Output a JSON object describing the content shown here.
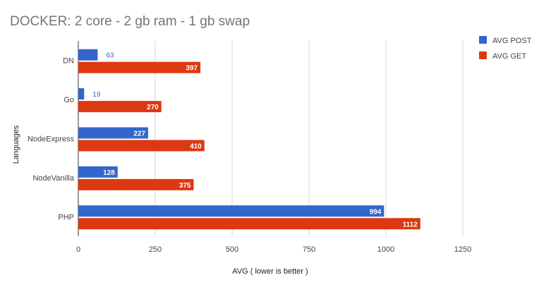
{
  "chart_data": {
    "type": "bar",
    "orientation": "horizontal",
    "title": "DOCKER: 2 core - 2 gb ram - 1 gb swap",
    "xlabel": "AVG ( lower is better )",
    "ylabel": "Languages",
    "categories": [
      "DN",
      "Go",
      "NodeExpress",
      "NodeVanilla",
      "PHP"
    ],
    "series": [
      {
        "name": "AVG POST",
        "color": "#3366cc",
        "values": [
          63,
          19,
          227,
          128,
          994
        ]
      },
      {
        "name": "AVG GET",
        "color": "#dc3912",
        "values": [
          397,
          270,
          410,
          375,
          1112
        ]
      }
    ],
    "xlim": [
      0,
      1250
    ],
    "xticks": [
      0,
      250,
      500,
      750,
      1000,
      1250
    ],
    "grid": true,
    "data_labels": true,
    "legend_position": "right"
  }
}
